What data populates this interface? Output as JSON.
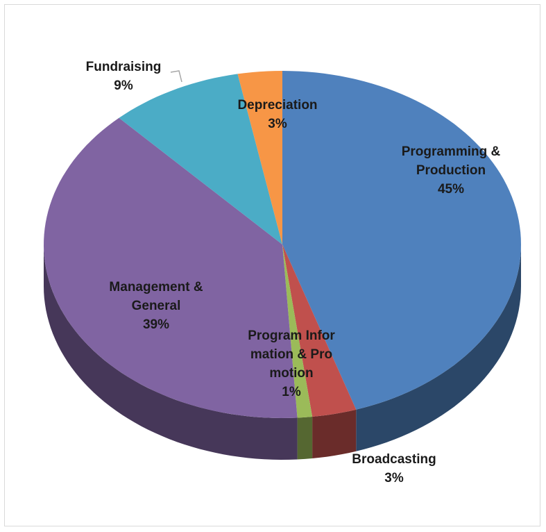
{
  "chart_data": {
    "type": "pie",
    "categories": [
      "Programming & Production",
      "Broadcasting",
      "Program Information & Promotion",
      "Management & General",
      "Fundraising",
      "Depreciation"
    ],
    "values": [
      45,
      3,
      1,
      39,
      9,
      3
    ],
    "value_labels": [
      "45%",
      "3%",
      "1%",
      "39%",
      "9%",
      "3%"
    ],
    "colors": [
      "#4f81bd",
      "#c0504d",
      "#9bbb59",
      "#8064a2",
      "#4bacc6",
      "#f79646"
    ]
  }
}
